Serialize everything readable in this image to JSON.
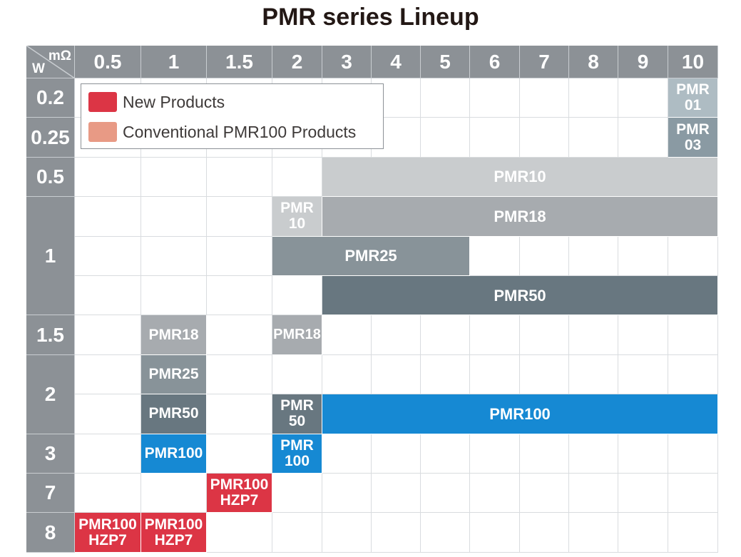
{
  "title": "PMR series Lineup",
  "chart_data": {
    "type": "table",
    "x_axis_unit": "mΩ",
    "y_axis_unit": "W",
    "columns": [
      "0.5",
      "1",
      "1.5",
      "2",
      "3",
      "4",
      "5",
      "6",
      "7",
      "8",
      "9",
      "10"
    ],
    "rows": [
      {
        "label": "0.2",
        "sublabels": 1
      },
      {
        "label": "0.25",
        "sublabels": 1
      },
      {
        "label": "0.5",
        "sublabels": 1
      },
      {
        "label": "1",
        "sublabels": 3
      },
      {
        "label": "1.5",
        "sublabels": 1
      },
      {
        "label": "2",
        "sublabels": 2
      },
      {
        "label": "3",
        "sublabels": 1
      },
      {
        "label": "7",
        "sublabels": 1
      },
      {
        "label": "8",
        "sublabels": 1
      }
    ],
    "legend": [
      {
        "label": "New Products",
        "color": "#dc3545"
      },
      {
        "label": "Conventional PMR100 Products",
        "color": "#e89a85"
      }
    ],
    "products": [
      {
        "label": [
          "PMR",
          "01"
        ],
        "row": 0,
        "col_start": 11,
        "col_end": 11,
        "color": "#aebcc3"
      },
      {
        "label": [
          "PMR",
          "03"
        ],
        "row": 1,
        "col_start": 11,
        "col_end": 11,
        "color": "#8a9aa3"
      },
      {
        "label": [
          "PMR10"
        ],
        "row": 2,
        "col_start": 4,
        "col_end": 11,
        "color": "#c9ccce"
      },
      {
        "label": [
          "PMR",
          "10"
        ],
        "row": 3,
        "col_start": 3,
        "col_end": 3,
        "color": "#c9ccce"
      },
      {
        "label": [
          "PMR18"
        ],
        "row": 3,
        "col_start": 4,
        "col_end": 11,
        "color": "#a7abaf"
      },
      {
        "label": [
          "PMR25"
        ],
        "row": 4,
        "col_start": 3,
        "col_end": 6,
        "color": "#889399"
      },
      {
        "label": [
          "PMR50"
        ],
        "row": 5,
        "col_start": 4,
        "col_end": 11,
        "color": "#687780"
      },
      {
        "label": [
          "PMR18"
        ],
        "row": 6,
        "col_start": 1,
        "col_end": 1,
        "color": "#a7abaf"
      },
      {
        "label": [
          "PMR18"
        ],
        "row": 6,
        "col_start": 3,
        "col_end": 3,
        "color": "#a7abaf"
      },
      {
        "label": [
          "PMR25"
        ],
        "row": 7,
        "col_start": 1,
        "col_end": 1,
        "color": "#889399"
      },
      {
        "label": [
          "PMR50"
        ],
        "row": 8,
        "col_start": 1,
        "col_end": 1,
        "color": "#687780"
      },
      {
        "label": [
          "PMR",
          "50"
        ],
        "row": 8,
        "col_start": 3,
        "col_end": 3,
        "color": "#687780"
      },
      {
        "label": [
          "PMR100"
        ],
        "row": 8,
        "col_start": 4,
        "col_end": 11,
        "color": "#1689d3"
      },
      {
        "label": [
          "PMR100"
        ],
        "row": 9,
        "col_start": 1,
        "col_end": 1,
        "color": "#1689d3"
      },
      {
        "label": [
          "PMR",
          "100"
        ],
        "row": 9,
        "col_start": 3,
        "col_end": 3,
        "color": "#1689d3"
      },
      {
        "label": [
          "PMR100",
          "HZP7"
        ],
        "row": 10,
        "col_start": 2,
        "col_end": 2,
        "color": "#dc3545"
      },
      {
        "label": [
          "PMR100",
          "HZP7"
        ],
        "row": 11,
        "col_start": 0,
        "col_end": 0,
        "color": "#dc3545"
      },
      {
        "label": [
          "PMR100",
          "HZP7"
        ],
        "row": 11,
        "col_start": 1,
        "col_end": 1,
        "color": "#dc3545"
      }
    ]
  }
}
